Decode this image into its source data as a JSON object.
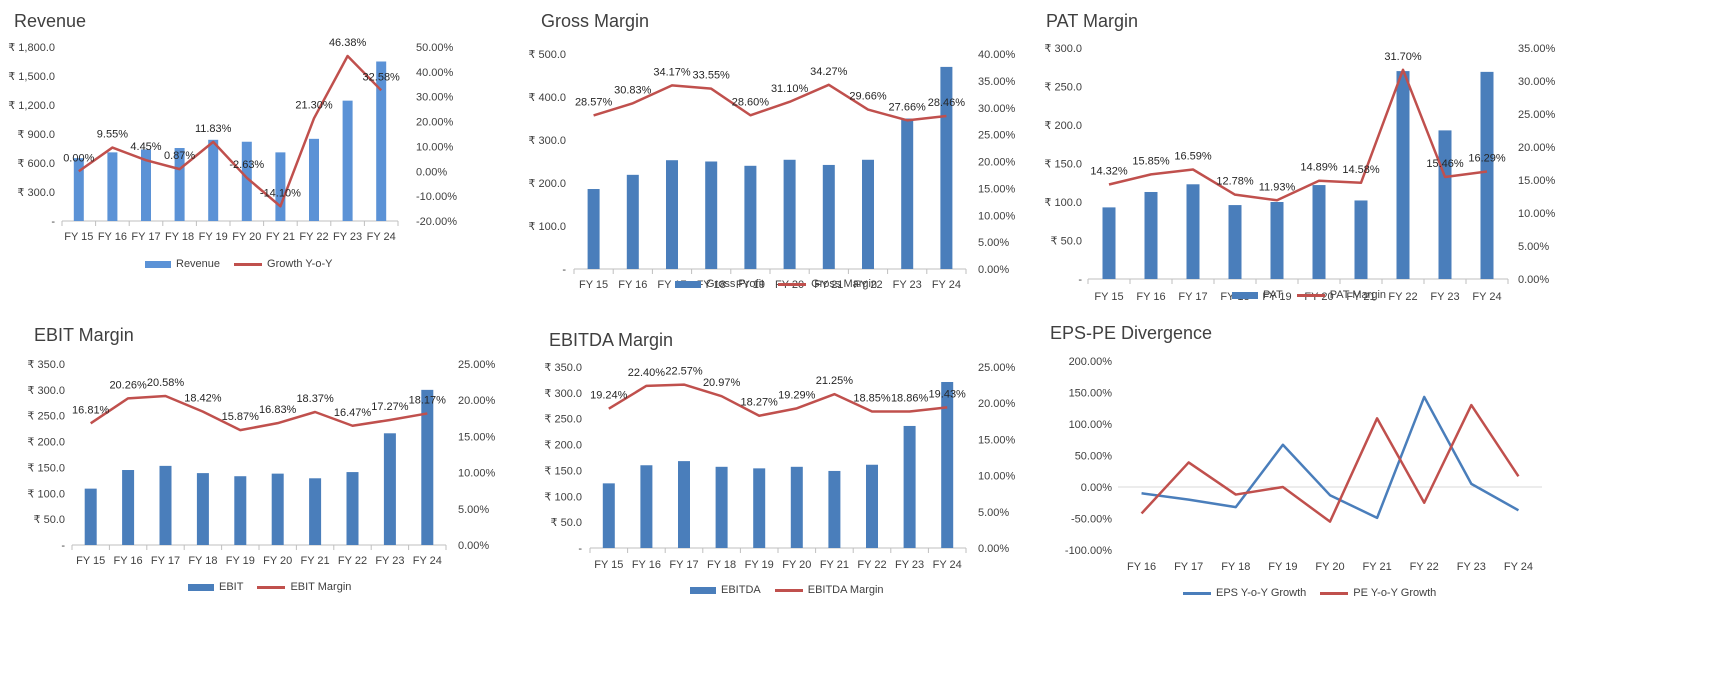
{
  "colors": {
    "bar": "#4a7ebb",
    "bar_light": "#5b92d6",
    "line": "#c0504d",
    "line_blue": "#4a7ebb",
    "axis": "#bfbfbf",
    "text": "#404040"
  },
  "chart_data": [
    {
      "id": "revenue",
      "type": "bar+line",
      "title": "Revenue",
      "categories": [
        "FY 15",
        "FY 16",
        "FY 17",
        "FY 18",
        "FY 19",
        "FY 20",
        "FY 21",
        "FY 22",
        "FY 23",
        "FY 24"
      ],
      "bar_series": {
        "name": "Revenue",
        "values": [
          650,
          710,
          740,
          755,
          840,
          820,
          710,
          850,
          1245,
          1650
        ]
      },
      "line_series": {
        "name": "Growth Y-o-Y",
        "values": [
          0.0,
          9.55,
          4.45,
          0.87,
          11.83,
          -2.63,
          -14.1,
          21.3,
          46.38,
          32.58
        ],
        "labels": [
          "0.00%",
          "9.55%",
          "4.45%",
          "0.87%",
          "11.83%",
          "-2.63%",
          "-14.10%",
          "21.30%",
          "46.38%",
          "32.58%"
        ]
      },
      "y_left": {
        "min": 0,
        "max": 1800,
        "ticks": [
          "-",
          "₹ 300.0",
          "₹ 600.0",
          "₹ 900.0",
          "₹ 1,200.0",
          "₹ 1,500.0",
          "₹ 1,800.0"
        ]
      },
      "y_right": {
        "min": -20,
        "max": 50,
        "ticks": [
          "-20.00%",
          "-10.00%",
          "0.00%",
          "10.00%",
          "20.00%",
          "30.00%",
          "40.00%",
          "50.00%"
        ]
      }
    },
    {
      "id": "gross",
      "type": "bar+line",
      "title": "Gross Margin",
      "categories": [
        "FY 15",
        "FY 16",
        "FY 17",
        "FY 18",
        "FY 19",
        "FY 20",
        "FY 21",
        "FY 22",
        "FY 23",
        "FY 24"
      ],
      "bar_series": {
        "name": "Gross Profit",
        "values": [
          186,
          219,
          253,
          250,
          240,
          254,
          242,
          254,
          350,
          470
        ]
      },
      "line_series": {
        "name": "Gross Margin",
        "values": [
          28.57,
          30.83,
          34.17,
          33.55,
          28.6,
          31.1,
          34.27,
          29.66,
          27.66,
          28.46
        ],
        "labels": [
          "28.57%",
          "30.83%",
          "34.17%",
          "33.55%",
          "28.60%",
          "31.10%",
          "34.27%",
          "29.66%",
          "27.66%",
          "28.46%"
        ]
      },
      "y_left": {
        "min": 0,
        "max": 500,
        "ticks": [
          "-",
          "₹ 100.0",
          "₹ 200.0",
          "₹ 300.0",
          "₹ 400.0",
          "₹ 500.0"
        ]
      },
      "y_right": {
        "min": 0,
        "max": 40,
        "ticks": [
          "0.00%",
          "5.00%",
          "10.00%",
          "15.00%",
          "20.00%",
          "25.00%",
          "30.00%",
          "35.00%",
          "40.00%"
        ]
      }
    },
    {
      "id": "pat",
      "type": "bar+line",
      "title": "PAT Margin",
      "categories": [
        "FY 15",
        "FY 16",
        "FY 17",
        "FY 18",
        "FY 19",
        "FY 20",
        "FY 21",
        "FY 22",
        "FY 23",
        "FY 24"
      ],
      "bar_series": {
        "name": "PAT",
        "values": [
          93,
          113,
          123,
          96,
          100,
          122,
          102,
          270,
          193,
          269
        ]
      },
      "line_series": {
        "name": "PAT Margin",
        "values": [
          14.32,
          15.85,
          16.59,
          12.78,
          11.93,
          14.89,
          14.58,
          31.7,
          15.46,
          16.29
        ],
        "labels": [
          "14.32%",
          "15.85%",
          "16.59%",
          "12.78%",
          "11.93%",
          "14.89%",
          "14.58%",
          "31.70%",
          "15.46%",
          "16.29%"
        ]
      },
      "y_left": {
        "min": 0,
        "max": 300,
        "ticks": [
          "-",
          "₹ 50.0",
          "₹ 100.0",
          "₹ 150.0",
          "₹ 200.0",
          "₹ 250.0",
          "₹ 300.0"
        ]
      },
      "y_right": {
        "min": 0,
        "max": 35,
        "ticks": [
          "0.00%",
          "5.00%",
          "10.00%",
          "15.00%",
          "20.00%",
          "25.00%",
          "30.00%",
          "35.00%"
        ]
      }
    },
    {
      "id": "ebit",
      "type": "bar+line",
      "title": "EBIT Margin",
      "categories": [
        "FY 15",
        "FY 16",
        "FY 17",
        "FY 18",
        "FY 19",
        "FY 20",
        "FY 21",
        "FY 22",
        "FY 23",
        "FY 24"
      ],
      "bar_series": {
        "name": "EBIT",
        "values": [
          109,
          145,
          153,
          139,
          133,
          138,
          129,
          141,
          216,
          300
        ]
      },
      "line_series": {
        "name": "EBIT Margin",
        "values": [
          16.81,
          20.26,
          20.58,
          18.42,
          15.87,
          16.83,
          18.37,
          16.47,
          17.27,
          18.17
        ],
        "labels": [
          "16.81%",
          "20.26%",
          "20.58%",
          "18.42%",
          "15.87%",
          "16.83%",
          "18.37%",
          "16.47%",
          "17.27%",
          "18.17%"
        ]
      },
      "y_left": {
        "min": 0,
        "max": 350,
        "ticks": [
          "-",
          "₹ 50.0",
          "₹ 100.0",
          "₹ 150.0",
          "₹ 200.0",
          "₹ 250.0",
          "₹ 300.0",
          "₹ 350.0"
        ]
      },
      "y_right": {
        "min": 0,
        "max": 25,
        "ticks": [
          "0.00%",
          "5.00%",
          "10.00%",
          "15.00%",
          "20.00%",
          "25.00%"
        ]
      }
    },
    {
      "id": "ebitda",
      "type": "bar+line",
      "title": "EBITDA Margin",
      "categories": [
        "FY 15",
        "FY 16",
        "FY 17",
        "FY 18",
        "FY 19",
        "FY 20",
        "FY 21",
        "FY 22",
        "FY 23",
        "FY 24"
      ],
      "bar_series": {
        "name": "EBITDA",
        "values": [
          125,
          160,
          168,
          157,
          154,
          157,
          149,
          161,
          236,
          321
        ]
      },
      "line_series": {
        "name": "EBITDA Margin",
        "values": [
          19.24,
          22.4,
          22.57,
          20.97,
          18.27,
          19.29,
          21.25,
          18.85,
          18.86,
          19.43
        ],
        "labels": [
          "19.24%",
          "22.40%",
          "22.57%",
          "20.97%",
          "18.27%",
          "19.29%",
          "21.25%",
          "18.85%",
          "18.86%",
          "19.43%"
        ]
      },
      "y_left": {
        "min": 0,
        "max": 350,
        "ticks": [
          "-",
          "₹ 50.0",
          "₹ 100.0",
          "₹ 150.0",
          "₹ 200.0",
          "₹ 250.0",
          "₹ 300.0",
          "₹ 350.0"
        ]
      },
      "y_right": {
        "min": 0,
        "max": 25,
        "ticks": [
          "0.00%",
          "5.00%",
          "10.00%",
          "15.00%",
          "20.00%",
          "25.00%"
        ]
      }
    },
    {
      "id": "eps",
      "type": "line",
      "title": "EPS-PE Divergence",
      "categories": [
        "FY 16",
        "FY 17",
        "FY 18",
        "FY 19",
        "FY 20",
        "FY 21",
        "FY 22",
        "FY 23",
        "FY 24"
      ],
      "series": [
        {
          "name": "EPS Y-o-Y Growth",
          "values": [
            -10,
            -20,
            -32,
            67,
            -13,
            -49,
            143,
            5,
            -37
          ]
        },
        {
          "name": "PE Y-o-Y Growth",
          "values": [
            -42,
            39,
            -12,
            0,
            -55,
            109,
            -25,
            130,
            17
          ]
        }
      ],
      "y": {
        "min": -100,
        "max": 200,
        "ticks": [
          "-100.00%",
          "-50.00%",
          "0.00%",
          "50.00%",
          "100.00%",
          "150.00%",
          "200.00%"
        ]
      }
    }
  ]
}
